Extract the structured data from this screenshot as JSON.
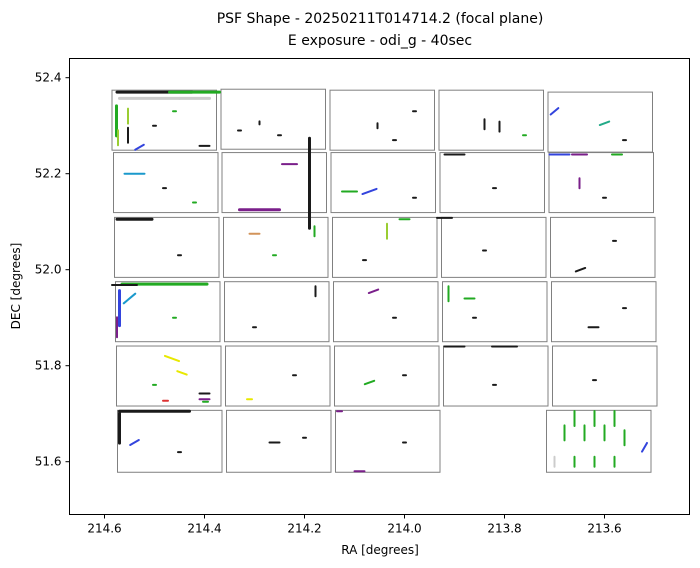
{
  "chart_data": {
    "type": "scatter",
    "title": [
      "PSF Shape - 20250211T014714.2 (focal plane)",
      "E exposure - odi_g - 40sec"
    ],
    "xlabel": "RA [degrees]",
    "ylabel": "DEC [degrees]",
    "xlim": [
      214.67,
      213.43
    ],
    "ylim": [
      51.49,
      52.44
    ],
    "x_reversed": true,
    "xticks": [
      214.6,
      214.4,
      214.2,
      214.0,
      213.8,
      213.6
    ],
    "xtick_labels": [
      "214.6",
      "214.4",
      "214.2",
      "214.0",
      "213.8",
      "213.6"
    ],
    "yticks": [
      51.6,
      51.8,
      52.0,
      52.2,
      52.4
    ],
    "ytick_labels": [
      "51.6",
      "51.8",
      "52.0",
      "52.2",
      "52.4"
    ],
    "grid": false,
    "ccds": [
      {
        "ra": [
          214.585,
          214.376
        ],
        "dec": [
          52.374,
          52.249
        ]
      },
      {
        "ra": [
          214.367,
          214.158
        ],
        "dec": [
          52.376,
          52.251
        ]
      },
      {
        "ra": [
          214.149,
          213.94
        ],
        "dec": [
          52.374,
          52.249
        ]
      },
      {
        "ra": [
          213.931,
          213.722
        ],
        "dec": [
          52.374,
          52.249
        ]
      },
      {
        "ra": [
          213.713,
          213.504
        ],
        "dec": [
          52.37,
          52.245
        ]
      },
      {
        "ra": [
          214.582,
          214.373
        ],
        "dec": [
          52.244,
          52.119
        ]
      },
      {
        "ra": [
          214.365,
          214.156
        ],
        "dec": [
          52.244,
          52.119
        ]
      },
      {
        "ra": [
          214.147,
          213.938
        ],
        "dec": [
          52.244,
          52.119
        ]
      },
      {
        "ra": [
          213.929,
          213.72
        ],
        "dec": [
          52.244,
          52.119
        ]
      },
      {
        "ra": [
          213.711,
          213.502
        ],
        "dec": [
          52.244,
          52.119
        ]
      },
      {
        "ra": [
          214.58,
          214.371
        ],
        "dec": [
          52.109,
          51.984
        ]
      },
      {
        "ra": [
          214.362,
          214.153
        ],
        "dec": [
          52.109,
          51.984
        ]
      },
      {
        "ra": [
          214.144,
          213.935
        ],
        "dec": [
          52.109,
          51.984
        ]
      },
      {
        "ra": [
          213.926,
          213.717
        ],
        "dec": [
          52.109,
          51.984
        ]
      },
      {
        "ra": [
          213.708,
          213.499
        ],
        "dec": [
          52.109,
          51.984
        ]
      },
      {
        "ra": [
          214.578,
          214.369
        ],
        "dec": [
          51.975,
          51.85
        ]
      },
      {
        "ra": [
          214.36,
          214.151
        ],
        "dec": [
          51.975,
          51.85
        ]
      },
      {
        "ra": [
          214.142,
          213.933
        ],
        "dec": [
          51.975,
          51.85
        ]
      },
      {
        "ra": [
          213.924,
          213.715
        ],
        "dec": [
          51.975,
          51.85
        ]
      },
      {
        "ra": [
          213.706,
          213.497
        ],
        "dec": [
          51.975,
          51.85
        ]
      },
      {
        "ra": [
          214.576,
          214.367
        ],
        "dec": [
          51.841,
          51.716
        ]
      },
      {
        "ra": [
          214.358,
          214.149
        ],
        "dec": [
          51.841,
          51.716
        ]
      },
      {
        "ra": [
          214.14,
          213.931
        ],
        "dec": [
          51.841,
          51.716
        ]
      },
      {
        "ra": [
          213.922,
          213.713
        ],
        "dec": [
          51.841,
          51.716
        ]
      },
      {
        "ra": [
          213.704,
          213.495
        ],
        "dec": [
          51.841,
          51.716
        ]
      },
      {
        "ra": [
          214.574,
          214.365
        ],
        "dec": [
          51.707,
          51.578
        ]
      },
      {
        "ra": [
          214.356,
          214.147
        ],
        "dec": [
          51.707,
          51.578
        ]
      },
      {
        "ra": [
          214.138,
          213.929
        ],
        "dec": [
          51.707,
          51.578
        ]
      },
      {
        "ra": [
          213.716,
          213.507
        ],
        "dec": [
          51.707,
          51.578
        ]
      }
    ],
    "psf_segments": [
      {
        "ra": 214.5,
        "dec": 52.37,
        "len": 0.15,
        "angle": 0,
        "color": "#1a1a1a"
      },
      {
        "ra": 214.42,
        "dec": 52.37,
        "len": 0.1,
        "angle": 0,
        "color": "#22aa22"
      },
      {
        "ra": 214.51,
        "dec": 52.357,
        "len": 0.12,
        "angle": 0,
        "color": "#cccccc"
      },
      {
        "ra": 214.42,
        "dec": 52.357,
        "len": 0.06,
        "angle": 0,
        "color": "#cccccc"
      },
      {
        "ra": 214.576,
        "dec": 52.31,
        "len": 0.06,
        "angle": 90,
        "color": "#22aa22"
      },
      {
        "ra": 214.573,
        "dec": 52.275,
        "len": 0.03,
        "angle": 90,
        "color": "#9acd32"
      },
      {
        "ra": 214.553,
        "dec": 52.32,
        "len": 0.03,
        "angle": 90,
        "color": "#9acd32"
      },
      {
        "ra": 214.553,
        "dec": 52.28,
        "len": 0.03,
        "angle": 90,
        "color": "#1a1a1a"
      },
      {
        "ra": 214.53,
        "dec": 52.255,
        "len": 0.02,
        "angle": 30,
        "color": "#3344dd"
      },
      {
        "ra": 214.4,
        "dec": 52.258,
        "len": 0.02,
        "angle": 0,
        "color": "#1a1a1a"
      },
      {
        "ra": 214.29,
        "dec": 52.306,
        "len": 0.006,
        "angle": 90,
        "color": "#1a1a1a"
      },
      {
        "ra": 214.054,
        "dec": 52.3,
        "len": 0.01,
        "angle": 90,
        "color": "#1a1a1a"
      },
      {
        "ra": 213.84,
        "dec": 52.303,
        "len": 0.02,
        "angle": 90,
        "color": "#1a1a1a"
      },
      {
        "ra": 213.81,
        "dec": 52.298,
        "len": 0.02,
        "angle": 90,
        "color": "#1a1a1a"
      },
      {
        "ra": 213.7,
        "dec": 52.33,
        "len": 0.02,
        "angle": 40,
        "color": "#3344dd"
      },
      {
        "ra": 213.6,
        "dec": 52.305,
        "len": 0.02,
        "angle": 20,
        "color": "#22aa88"
      },
      {
        "ra": 214.54,
        "dec": 52.2,
        "len": 0.04,
        "angle": 0,
        "color": "#1a99cc"
      },
      {
        "ra": 214.29,
        "dec": 52.125,
        "len": 0.08,
        "angle": 0,
        "color": "#7a1f8a"
      },
      {
        "ra": 214.19,
        "dec": 52.18,
        "len": 0.18,
        "angle": 90,
        "color": "#1a1a1a"
      },
      {
        "ra": 214.23,
        "dec": 52.22,
        "len": 0.03,
        "angle": 0,
        "color": "#7a1f8a"
      },
      {
        "ra": 214.07,
        "dec": 52.163,
        "len": 0.03,
        "angle": 20,
        "color": "#3344dd"
      },
      {
        "ra": 214.11,
        "dec": 52.163,
        "len": 0.03,
        "angle": 0,
        "color": "#22aa22"
      },
      {
        "ra": 213.9,
        "dec": 52.24,
        "len": 0.04,
        "angle": 0,
        "color": "#1a1a1a"
      },
      {
        "ra": 213.69,
        "dec": 52.24,
        "len": 0.04,
        "angle": 0,
        "color": "#3344dd"
      },
      {
        "ra": 213.65,
        "dec": 52.24,
        "len": 0.03,
        "angle": 0,
        "color": "#7a1f8a"
      },
      {
        "ra": 213.575,
        "dec": 52.24,
        "len": 0.02,
        "angle": 0,
        "color": "#22aa22"
      },
      {
        "ra": 213.65,
        "dec": 52.18,
        "len": 0.02,
        "angle": 90,
        "color": "#7a1f8a"
      },
      {
        "ra": 214.54,
        "dec": 52.105,
        "len": 0.07,
        "angle": 0,
        "color": "#1a1a1a"
      },
      {
        "ra": 214.3,
        "dec": 52.075,
        "len": 0.02,
        "angle": 0,
        "color": "#d2945a"
      },
      {
        "ra": 214.18,
        "dec": 52.08,
        "len": 0.02,
        "angle": 90,
        "color": "#22aa22"
      },
      {
        "ra": 214.035,
        "dec": 52.08,
        "len": 0.03,
        "angle": 90,
        "color": "#9acd32"
      },
      {
        "ra": 214.0,
        "dec": 52.105,
        "len": 0.02,
        "angle": 0,
        "color": "#22aa22"
      },
      {
        "ra": 213.92,
        "dec": 52.108,
        "len": 0.03,
        "angle": 0,
        "color": "#1a1a1a"
      },
      {
        "ra": 213.648,
        "dec": 52.0,
        "len": 0.02,
        "angle": 20,
        "color": "#1a1a1a"
      },
      {
        "ra": 214.48,
        "dec": 51.97,
        "len": 0.17,
        "angle": 0,
        "color": "#22aa22"
      },
      {
        "ra": 214.56,
        "dec": 51.968,
        "len": 0.05,
        "angle": 0,
        "color": "#1a1a1a"
      },
      {
        "ra": 214.57,
        "dec": 51.92,
        "len": 0.07,
        "angle": 90,
        "color": "#3344dd"
      },
      {
        "ra": 214.575,
        "dec": 51.88,
        "len": 0.04,
        "angle": 90,
        "color": "#7a1f8a"
      },
      {
        "ra": 214.55,
        "dec": 51.94,
        "len": 0.03,
        "angle": 40,
        "color": "#1a99cc"
      },
      {
        "ra": 214.178,
        "dec": 51.955,
        "len": 0.02,
        "angle": 90,
        "color": "#1a1a1a"
      },
      {
        "ra": 214.062,
        "dec": 51.955,
        "len": 0.02,
        "angle": 20,
        "color": "#7a1f8a"
      },
      {
        "ra": 213.912,
        "dec": 51.95,
        "len": 0.03,
        "angle": 90,
        "color": "#22aa22"
      },
      {
        "ra": 213.87,
        "dec": 51.94,
        "len": 0.02,
        "angle": 0,
        "color": "#22aa22"
      },
      {
        "ra": 213.622,
        "dec": 51.88,
        "len": 0.02,
        "angle": 0,
        "color": "#1a1a1a"
      },
      {
        "ra": 213.9,
        "dec": 51.84,
        "len": 0.04,
        "angle": 0,
        "color": "#1a1a1a"
      },
      {
        "ra": 213.8,
        "dec": 51.84,
        "len": 0.05,
        "angle": 0,
        "color": "#1a1a1a"
      },
      {
        "ra": 214.465,
        "dec": 51.815,
        "len": 0.03,
        "angle": -20,
        "color": "#e8e800"
      },
      {
        "ra": 214.445,
        "dec": 51.785,
        "len": 0.02,
        "angle": -20,
        "color": "#e8e800"
      },
      {
        "ra": 214.4,
        "dec": 51.742,
        "len": 0.02,
        "angle": 0,
        "color": "#1a1a1a"
      },
      {
        "ra": 214.4,
        "dec": 51.73,
        "len": 0.02,
        "angle": 0,
        "color": "#7a1f8a"
      },
      {
        "ra": 214.398,
        "dec": 51.725,
        "len": 0.01,
        "angle": 0,
        "color": "#22aa22"
      },
      {
        "ra": 214.478,
        "dec": 51.727,
        "len": 0.01,
        "angle": 0,
        "color": "#dd3333"
      },
      {
        "ra": 214.31,
        "dec": 51.73,
        "len": 0.01,
        "angle": 0,
        "color": "#e8e800"
      },
      {
        "ra": 214.07,
        "dec": 51.765,
        "len": 0.02,
        "angle": 20,
        "color": "#22aa22"
      },
      {
        "ra": 214.5,
        "dec": 51.705,
        "len": 0.14,
        "angle": 0,
        "color": "#1a1a1a"
      },
      {
        "ra": 214.57,
        "dec": 51.67,
        "len": 0.06,
        "angle": 90,
        "color": "#1a1a1a"
      },
      {
        "ra": 214.54,
        "dec": 51.64,
        "len": 0.02,
        "angle": 30,
        "color": "#3344dd"
      },
      {
        "ra": 214.26,
        "dec": 51.64,
        "len": 0.02,
        "angle": 0,
        "color": "#1a1a1a"
      },
      {
        "ra": 214.09,
        "dec": 51.58,
        "len": 0.02,
        "angle": 0,
        "color": "#7a1f8a"
      },
      {
        "ra": 214.13,
        "dec": 51.705,
        "len": 0.01,
        "angle": 0,
        "color": "#7a1f8a"
      },
      {
        "ra": 213.66,
        "dec": 51.69,
        "len": 0.03,
        "angle": 90,
        "color": "#22aa22"
      },
      {
        "ra": 213.62,
        "dec": 51.69,
        "len": 0.03,
        "angle": 90,
        "color": "#22aa22"
      },
      {
        "ra": 213.58,
        "dec": 51.69,
        "len": 0.03,
        "angle": 90,
        "color": "#22aa22"
      },
      {
        "ra": 213.68,
        "dec": 51.66,
        "len": 0.03,
        "angle": 90,
        "color": "#22aa22"
      },
      {
        "ra": 213.64,
        "dec": 51.66,
        "len": 0.03,
        "angle": 90,
        "color": "#22aa22"
      },
      {
        "ra": 213.6,
        "dec": 51.66,
        "len": 0.03,
        "angle": 90,
        "color": "#22aa22"
      },
      {
        "ra": 213.56,
        "dec": 51.65,
        "len": 0.03,
        "angle": 90,
        "color": "#22aa22"
      },
      {
        "ra": 213.7,
        "dec": 51.6,
        "len": 0.02,
        "angle": 90,
        "color": "#cccccc"
      },
      {
        "ra": 213.66,
        "dec": 51.6,
        "len": 0.02,
        "angle": 90,
        "color": "#22aa22"
      },
      {
        "ra": 213.62,
        "dec": 51.6,
        "len": 0.02,
        "angle": 90,
        "color": "#22aa22"
      },
      {
        "ra": 213.58,
        "dec": 51.6,
        "len": 0.02,
        "angle": 90,
        "color": "#22aa22"
      },
      {
        "ra": 213.52,
        "dec": 51.63,
        "len": 0.02,
        "angle": 60,
        "color": "#3344dd"
      },
      {
        "ra": 214.5,
        "dec": 52.3,
        "len": 0.006,
        "angle": 0,
        "color": "#1a1a1a"
      },
      {
        "ra": 214.46,
        "dec": 52.33,
        "len": 0.006,
        "angle": 0,
        "color": "#22aa22"
      },
      {
        "ra": 214.25,
        "dec": 52.28,
        "len": 0.006,
        "angle": 0,
        "color": "#1a1a1a"
      },
      {
        "ra": 214.33,
        "dec": 52.29,
        "len": 0.006,
        "angle": 0,
        "color": "#1a1a1a"
      },
      {
        "ra": 214.02,
        "dec": 52.27,
        "len": 0.006,
        "angle": 0,
        "color": "#1a1a1a"
      },
      {
        "ra": 213.98,
        "dec": 52.33,
        "len": 0.006,
        "angle": 0,
        "color": "#1a1a1a"
      },
      {
        "ra": 213.76,
        "dec": 52.28,
        "len": 0.006,
        "angle": 0,
        "color": "#22aa22"
      },
      {
        "ra": 213.56,
        "dec": 52.27,
        "len": 0.006,
        "angle": 0,
        "color": "#1a1a1a"
      },
      {
        "ra": 214.48,
        "dec": 52.17,
        "len": 0.006,
        "angle": 0,
        "color": "#1a1a1a"
      },
      {
        "ra": 214.42,
        "dec": 52.14,
        "len": 0.006,
        "angle": 0,
        "color": "#22aa22"
      },
      {
        "ra": 213.98,
        "dec": 52.15,
        "len": 0.006,
        "angle": 0,
        "color": "#1a1a1a"
      },
      {
        "ra": 213.82,
        "dec": 52.17,
        "len": 0.006,
        "angle": 0,
        "color": "#1a1a1a"
      },
      {
        "ra": 213.6,
        "dec": 52.15,
        "len": 0.006,
        "angle": 0,
        "color": "#1a1a1a"
      },
      {
        "ra": 214.45,
        "dec": 52.03,
        "len": 0.006,
        "angle": 0,
        "color": "#1a1a1a"
      },
      {
        "ra": 214.26,
        "dec": 52.03,
        "len": 0.006,
        "angle": 0,
        "color": "#22aa22"
      },
      {
        "ra": 214.08,
        "dec": 52.02,
        "len": 0.006,
        "angle": 0,
        "color": "#1a1a1a"
      },
      {
        "ra": 213.84,
        "dec": 52.04,
        "len": 0.006,
        "angle": 0,
        "color": "#1a1a1a"
      },
      {
        "ra": 213.58,
        "dec": 52.06,
        "len": 0.006,
        "angle": 0,
        "color": "#1a1a1a"
      },
      {
        "ra": 214.46,
        "dec": 51.9,
        "len": 0.006,
        "angle": 0,
        "color": "#22aa22"
      },
      {
        "ra": 214.3,
        "dec": 51.88,
        "len": 0.006,
        "angle": 0,
        "color": "#1a1a1a"
      },
      {
        "ra": 214.02,
        "dec": 51.9,
        "len": 0.006,
        "angle": 0,
        "color": "#1a1a1a"
      },
      {
        "ra": 213.86,
        "dec": 51.9,
        "len": 0.006,
        "angle": 0,
        "color": "#1a1a1a"
      },
      {
        "ra": 213.56,
        "dec": 51.92,
        "len": 0.006,
        "angle": 0,
        "color": "#1a1a1a"
      },
      {
        "ra": 214.5,
        "dec": 51.76,
        "len": 0.006,
        "angle": 0,
        "color": "#22aa22"
      },
      {
        "ra": 214.22,
        "dec": 51.78,
        "len": 0.006,
        "angle": 0,
        "color": "#1a1a1a"
      },
      {
        "ra": 214.0,
        "dec": 51.78,
        "len": 0.006,
        "angle": 0,
        "color": "#1a1a1a"
      },
      {
        "ra": 213.82,
        "dec": 51.76,
        "len": 0.006,
        "angle": 0,
        "color": "#1a1a1a"
      },
      {
        "ra": 213.62,
        "dec": 51.77,
        "len": 0.006,
        "angle": 0,
        "color": "#1a1a1a"
      },
      {
        "ra": 214.45,
        "dec": 51.62,
        "len": 0.006,
        "angle": 0,
        "color": "#1a1a1a"
      },
      {
        "ra": 214.2,
        "dec": 51.65,
        "len": 0.006,
        "angle": 0,
        "color": "#1a1a1a"
      },
      {
        "ra": 214.0,
        "dec": 51.64,
        "len": 0.006,
        "angle": 0,
        "color": "#1a1a1a"
      }
    ]
  }
}
